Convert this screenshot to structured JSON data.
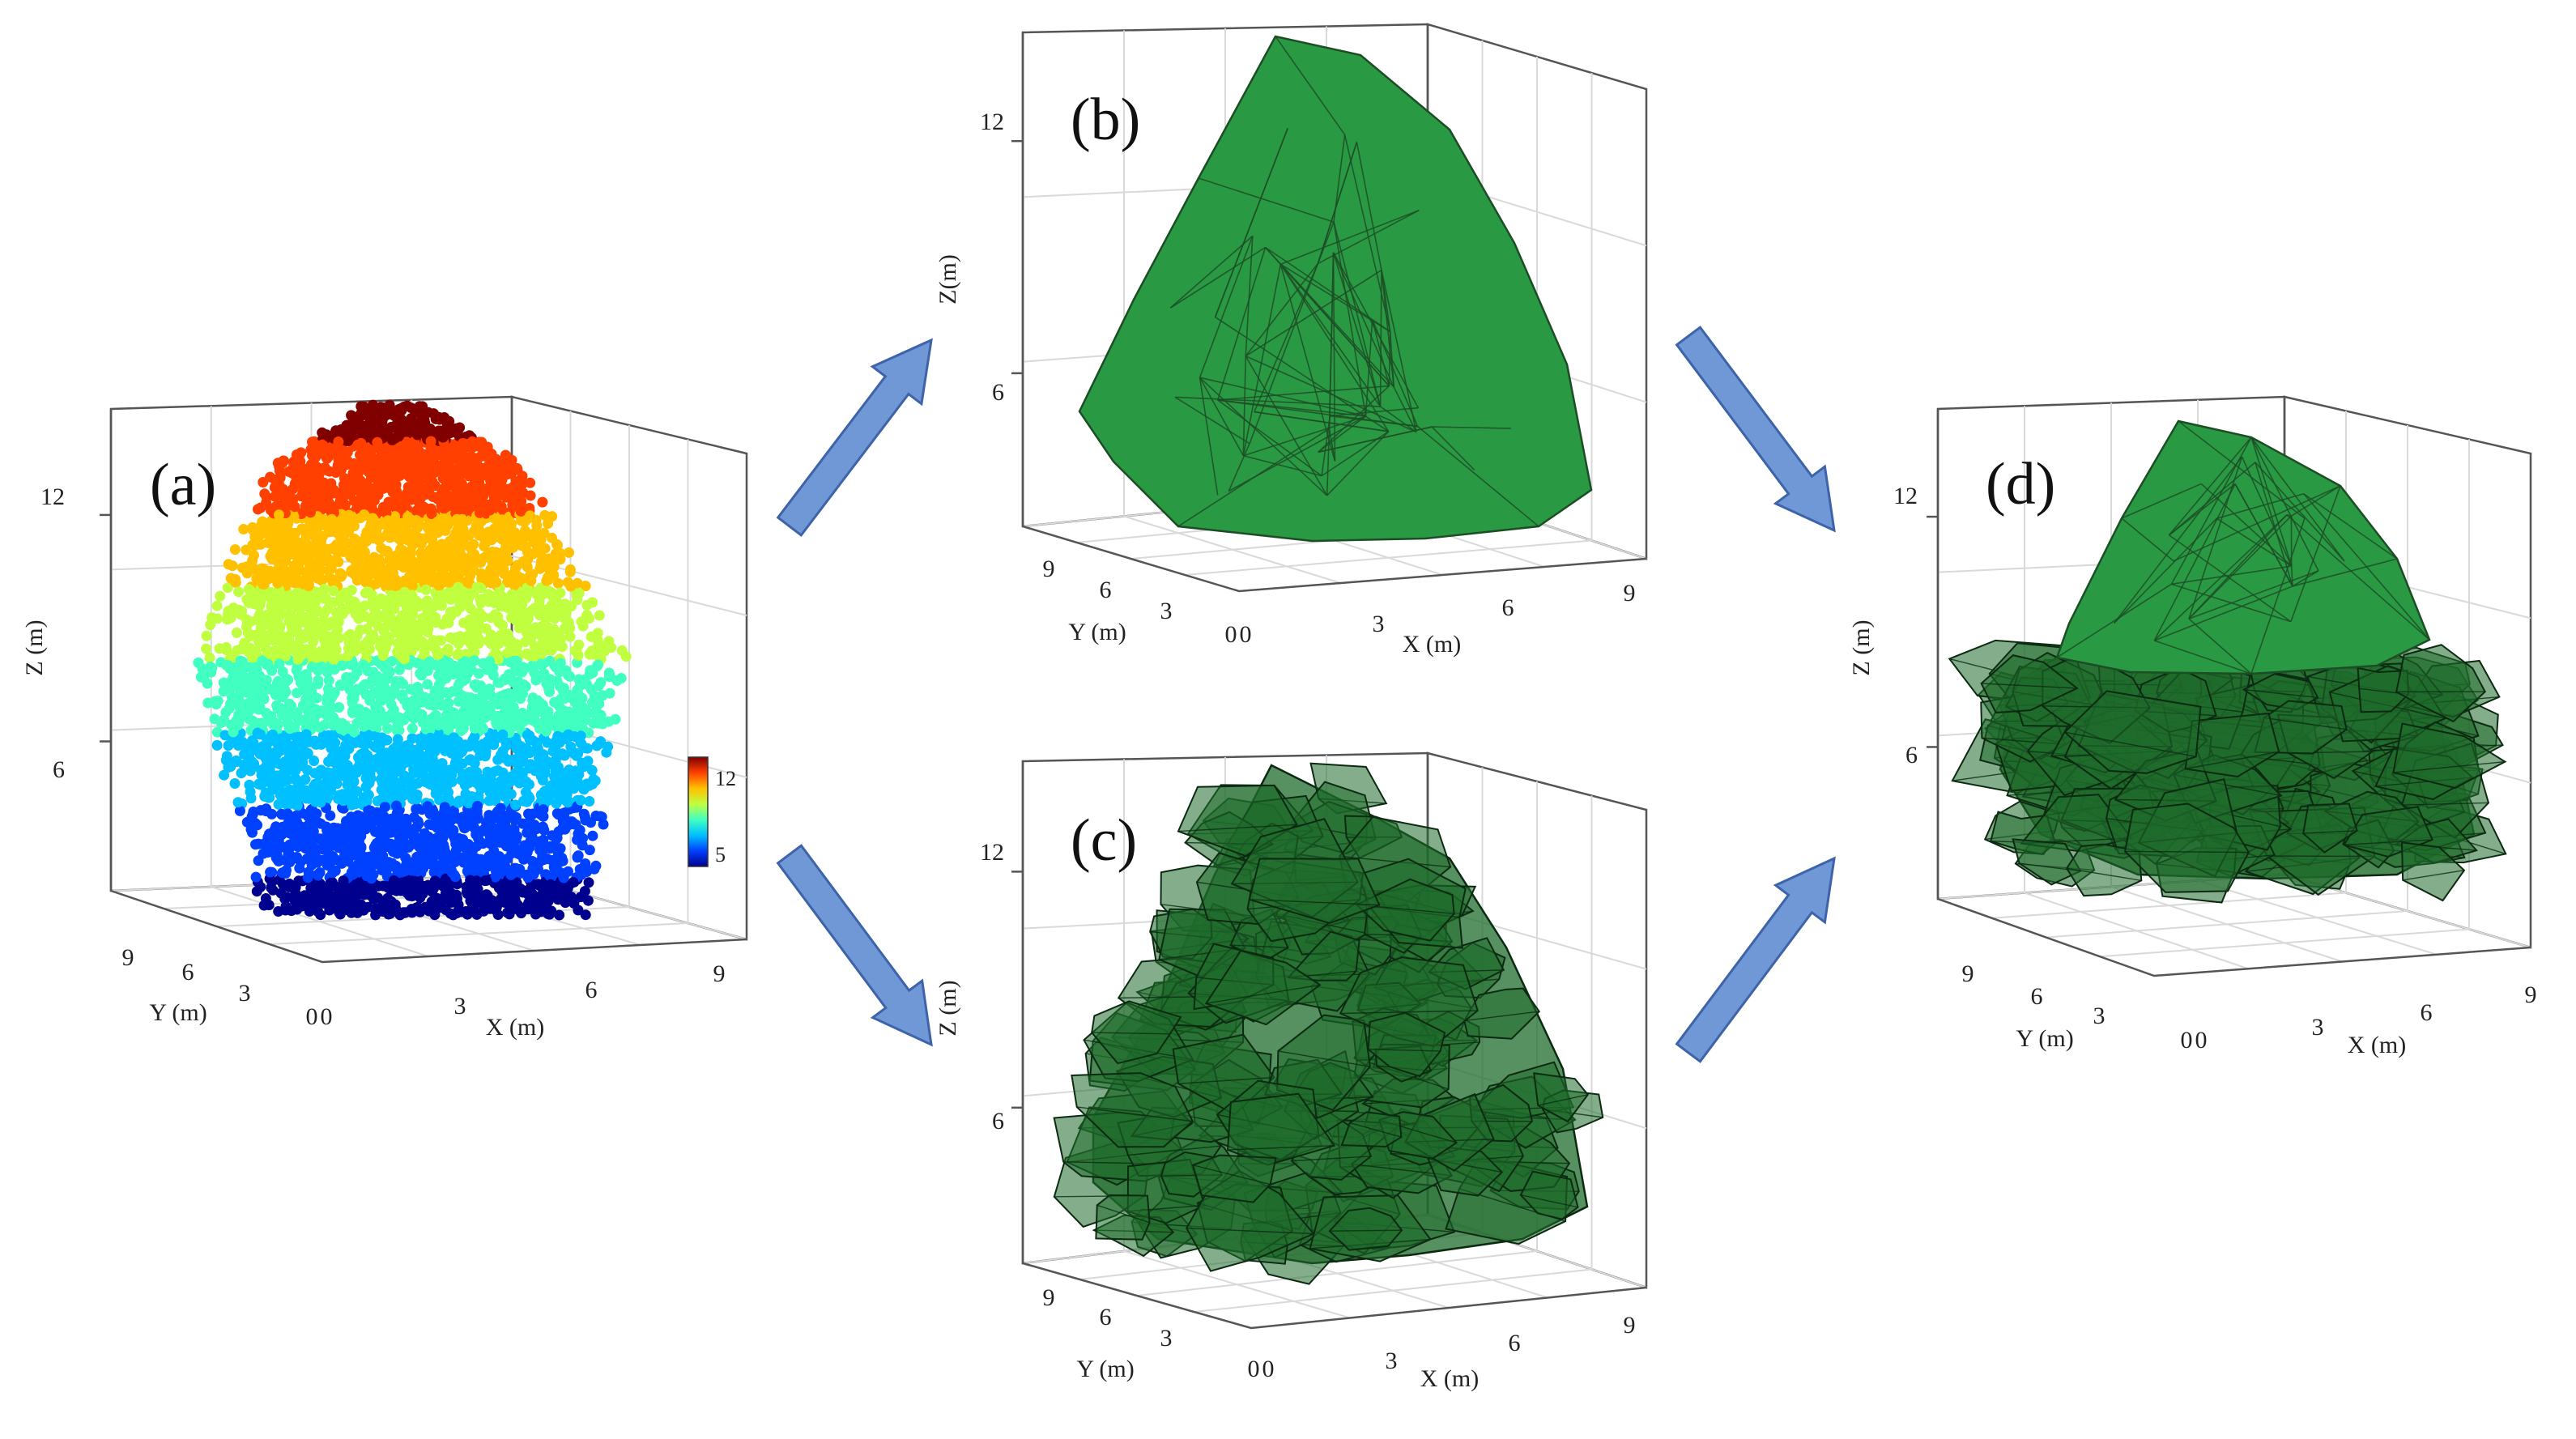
{
  "colors": {
    "hull_fill": "#2a9944",
    "hull_edge": "#1c4d25",
    "dark_fill": "#1f6b2c",
    "dark_edge": "#0c2a11",
    "arrow_fill": "#7098d6",
    "arrow_edge": "#3d63a9",
    "colormap": [
      "#00008f",
      "#0040ff",
      "#00c0ff",
      "#40ffc0",
      "#c0ff40",
      "#ffc000",
      "#ff4000",
      "#800000"
    ]
  },
  "panels": [
    {
      "id": "a",
      "label": "(a)",
      "render": "point-cloud",
      "z_axis_label": "Z (m)",
      "x_axis_label": "X (m)",
      "y_axis_label": "Y (m)",
      "z_ticks": [
        "12",
        "6"
      ],
      "x_ticks": [
        "0",
        "3",
        "6",
        "9"
      ],
      "y_ticks": [
        "9",
        "6",
        "3",
        "0"
      ],
      "colorbar_ticks": [
        "12",
        "5"
      ]
    },
    {
      "id": "b",
      "label": "(b)",
      "render": "convex-hull",
      "z_axis_label": "Z(m)",
      "x_axis_label": "X (m)",
      "y_axis_label": "Y (m)",
      "z_ticks": [
        "12",
        "6"
      ],
      "x_ticks": [
        "0",
        "3",
        "6",
        "9"
      ],
      "y_ticks": [
        "9",
        "6",
        "3",
        "0"
      ]
    },
    {
      "id": "c",
      "label": "(c)",
      "render": "voxel-hulls",
      "z_axis_label": "Z (m)",
      "x_axis_label": "X (m)",
      "y_axis_label": "Y (m)",
      "z_ticks": [
        "12",
        "6"
      ],
      "x_ticks": [
        "0",
        "3",
        "6",
        "9"
      ],
      "y_ticks": [
        "9",
        "6",
        "3",
        "0"
      ]
    },
    {
      "id": "d",
      "label": "(d)",
      "render": "combined",
      "z_axis_label": "Z (m)",
      "x_axis_label": "X (m)",
      "y_axis_label": "Y (m)",
      "z_ticks": [
        "12",
        "6"
      ],
      "x_ticks": [
        "0",
        "3",
        "6",
        "9"
      ],
      "y_ticks": [
        "9",
        "6",
        "3",
        "0"
      ]
    }
  ],
  "arrows": [
    {
      "id": "a-to-b",
      "from": "a",
      "to": "b"
    },
    {
      "id": "a-to-c",
      "from": "a",
      "to": "c"
    },
    {
      "id": "b-to-d",
      "from": "b",
      "to": "d"
    },
    {
      "id": "c-to-d",
      "from": "c",
      "to": "d"
    }
  ]
}
